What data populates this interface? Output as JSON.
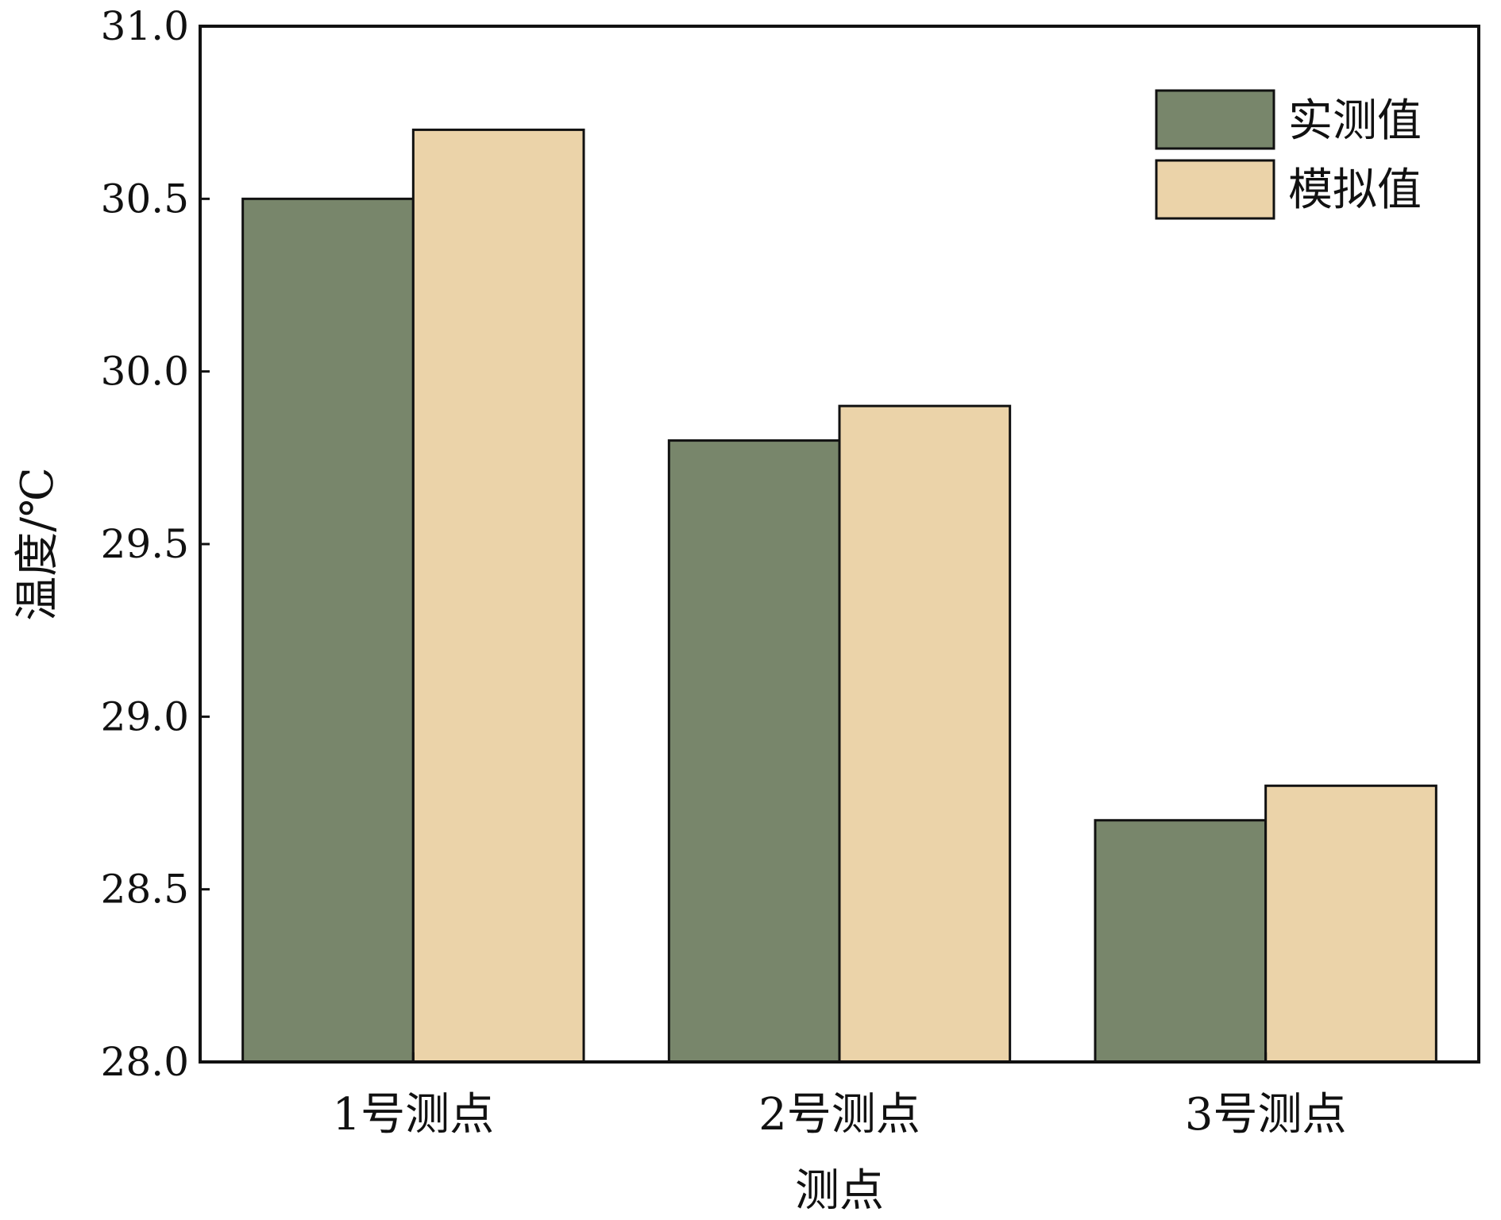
{
  "chart_data": {
    "type": "bar",
    "title": "",
    "xlabel": "测点",
    "ylabel": "温度/℃",
    "categories": [
      "1号测点",
      "2号测点",
      "3号测点"
    ],
    "series": [
      {
        "name": "实测值",
        "values": [
          30.5,
          29.8,
          28.7
        ],
        "color": "#78866b"
      },
      {
        "name": "模拟值",
        "values": [
          30.7,
          29.9,
          28.8
        ],
        "color": "#ebd3a9"
      }
    ],
    "ylim": [
      28.0,
      31.0
    ],
    "yticks": [
      "28.0",
      "28.5",
      "29.0",
      "29.5",
      "30.0",
      "30.5",
      "31.0"
    ],
    "grid": false,
    "legend_position": "top-right"
  }
}
